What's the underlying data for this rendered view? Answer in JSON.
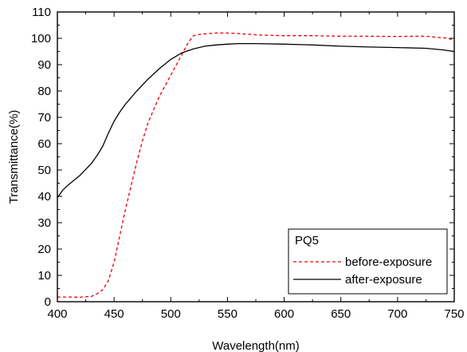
{
  "chart_data": {
    "type": "line",
    "xlabel": "Wavelength(nm)",
    "ylabel": "Transmittance(%)",
    "xlim": [
      400,
      750
    ],
    "ylim": [
      0,
      110
    ],
    "x_ticks": [
      400,
      450,
      500,
      550,
      600,
      650,
      700,
      750
    ],
    "y_ticks": [
      0,
      10,
      20,
      30,
      40,
      50,
      60,
      70,
      80,
      90,
      100,
      110
    ],
    "grid": false,
    "legend": {
      "title": "PQ5",
      "placement": "bottom-right"
    },
    "series": [
      {
        "name": "before-exposure",
        "color": "#e8000b",
        "dash": "dashed",
        "x": [
          400,
          410,
          420,
          430,
          435,
          440,
          445,
          450,
          455,
          460,
          465,
          470,
          475,
          480,
          485,
          490,
          495,
          500,
          505,
          510,
          515,
          520,
          525,
          530,
          540,
          550,
          560,
          580,
          600,
          625,
          650,
          675,
          700,
          715,
          725,
          735,
          745,
          750
        ],
        "y": [
          1.8,
          1.8,
          1.7,
          2.0,
          3.0,
          4.5,
          8.0,
          15.0,
          25.0,
          35.0,
          44.0,
          53.0,
          61.0,
          68.0,
          73.0,
          78.0,
          82.0,
          86.0,
          90.0,
          94.0,
          98.0,
          101.0,
          101.5,
          101.7,
          102.0,
          102.0,
          101.8,
          101.2,
          101.0,
          101.0,
          100.8,
          100.8,
          100.7,
          100.8,
          100.8,
          100.4,
          100.0,
          99.0
        ]
      },
      {
        "name": "after-exposure",
        "color": "#000000",
        "dash": "solid",
        "x": [
          400,
          405,
          410,
          420,
          430,
          435,
          440,
          445,
          450,
          455,
          460,
          470,
          480,
          490,
          500,
          510,
          520,
          530,
          540,
          550,
          560,
          575,
          600,
          625,
          650,
          675,
          700,
          725,
          740,
          750
        ],
        "y": [
          39.5,
          42.5,
          44.5,
          48.0,
          52.5,
          55.5,
          59.0,
          64.0,
          68.5,
          72.0,
          75.0,
          80.0,
          84.5,
          88.5,
          92.0,
          94.5,
          96.0,
          97.0,
          97.5,
          97.8,
          98.0,
          98.0,
          97.8,
          97.5,
          97.0,
          96.7,
          96.5,
          96.2,
          95.6,
          95.0
        ]
      }
    ]
  }
}
